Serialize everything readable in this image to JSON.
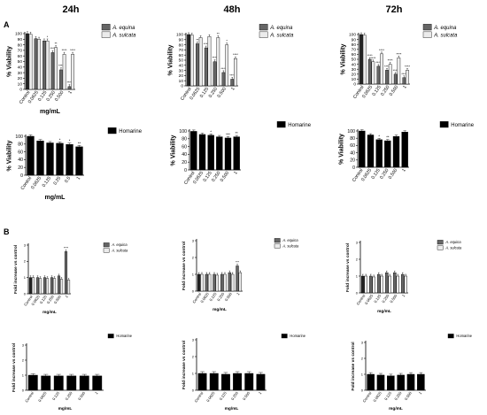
{
  "column_headers": [
    "24h",
    "48h",
    "72h"
  ],
  "section_labels": [
    "A",
    "B"
  ],
  "viability_ylabel": "% Viability",
  "fold_ylabel": "Fold increase vs control",
  "xlabel": "mg/mL",
  "series_names": {
    "equina": "A. equina",
    "sulcata": "A. sulcata",
    "homarine": "Homarine"
  },
  "colors": {
    "equina": "#666666",
    "sulcata": "#ebebeb",
    "homarine": "#000000",
    "control": "#222222"
  },
  "chart_data": [
    {
      "id": "A-extract-24h",
      "type": "bar",
      "ylabel": "% Viability",
      "xlabel": "mg/mL",
      "ylim": [
        0,
        100
      ],
      "yticks": [
        0,
        10,
        20,
        30,
        40,
        50,
        60,
        70,
        80,
        90,
        100
      ],
      "categories": [
        "Control",
        "0.0625",
        "0.125",
        "0.250",
        "0.500",
        "1"
      ],
      "series": [
        {
          "name": "A. equina",
          "values": [
            100,
            91,
            87,
            66,
            35,
            5
          ]
        },
        {
          "name": "A. sulcata",
          "values": [
            99,
            90,
            87,
            75,
            63,
            63
          ]
        }
      ],
      "annotations": [
        [
          "",
          ""
        ],
        [
          "",
          ""
        ],
        [
          "",
          "*"
        ],
        [
          "****",
          "**"
        ],
        [
          "****",
          "****"
        ],
        [
          "****",
          "****"
        ]
      ],
      "legend": "top-right",
      "grid": false
    },
    {
      "id": "A-extract-48h",
      "type": "bar",
      "ylabel": "% Viability",
      "xlabel": "mg/mL",
      "ylim": [
        0,
        100
      ],
      "yticks": [
        0,
        10,
        20,
        30,
        40,
        50,
        60,
        70,
        80,
        90,
        100
      ],
      "categories": [
        "Control",
        "0.0625",
        "0.125",
        "0.250",
        "0.500",
        "1"
      ],
      "series": [
        {
          "name": "A. equina",
          "values": [
            100,
            82,
            74,
            47,
            26,
            13
          ]
        },
        {
          "name": "A. sulcata",
          "values": [
            99,
            94,
            96,
            94,
            80,
            53
          ]
        }
      ],
      "annotations": [
        [
          "",
          ""
        ],
        [
          "**",
          ""
        ],
        [
          "****",
          ""
        ],
        [
          "****",
          "**"
        ],
        [
          "****",
          "*"
        ],
        [
          "****",
          "****"
        ]
      ],
      "legend": "top-right",
      "grid": false
    },
    {
      "id": "A-extract-72h",
      "type": "bar",
      "ylabel": "% Viability",
      "xlabel": "mg/mL",
      "ylim": [
        0,
        100
      ],
      "yticks": [
        0,
        10,
        20,
        30,
        40,
        50,
        60,
        70,
        80,
        90,
        100
      ],
      "categories": [
        "Control",
        "0.0625",
        "0.125",
        "0.250",
        "0.500",
        "1"
      ],
      "series": [
        {
          "name": "A. equina",
          "values": [
            100,
            50,
            36,
            28,
            20,
            13
          ]
        },
        {
          "name": "A. sulcata",
          "values": [
            99,
            45,
            61,
            40,
            53,
            28
          ]
        }
      ],
      "annotations": [
        [
          "",
          ""
        ],
        [
          "****",
          "****"
        ],
        [
          "****",
          "****"
        ],
        [
          "****",
          "****"
        ],
        [
          "****",
          "****"
        ],
        [
          "****",
          "****"
        ]
      ],
      "legend": "top-right",
      "grid": false
    },
    {
      "id": "A-homarine-24h",
      "type": "bar",
      "ylabel": "% Viability",
      "xlabel": "mg/mL",
      "ylim": [
        0,
        100
      ],
      "yticks": [
        0,
        20,
        40,
        60,
        80,
        100
      ],
      "categories": [
        "Control",
        "0.0625",
        "0.125",
        "0.25",
        "0.5",
        "1"
      ],
      "series": [
        {
          "name": "Homarine",
          "values": [
            100,
            88,
            83,
            82,
            79,
            73
          ]
        }
      ],
      "annotations": [
        [
          ""
        ],
        [
          ""
        ],
        [
          ""
        ],
        [
          "*"
        ],
        [
          "*"
        ],
        [
          "**"
        ]
      ],
      "legend": "top-right",
      "grid": false
    },
    {
      "id": "A-homarine-48h",
      "type": "bar",
      "ylabel": "% Viability",
      "xlabel": "mg/mL",
      "ylim": [
        0,
        100
      ],
      "yticks": [
        0,
        20,
        40,
        60,
        80,
        100
      ],
      "categories": [
        "Control",
        "0.0625",
        "0.125",
        "0.250",
        "0.500",
        "1"
      ],
      "series": [
        {
          "name": "Homarine",
          "values": [
            99,
            91,
            89,
            85,
            82,
            85
          ]
        }
      ],
      "annotations": [
        [
          ""
        ],
        [
          ""
        ],
        [
          "*"
        ],
        [
          ""
        ],
        [
          "***"
        ],
        [
          "**"
        ]
      ],
      "legend": "top-right",
      "grid": false
    },
    {
      "id": "A-homarine-72h",
      "type": "bar",
      "ylabel": "% Viability",
      "xlabel": "mg/mL",
      "ylim": [
        0,
        100
      ],
      "yticks": [
        0,
        20,
        40,
        60,
        80,
        100
      ],
      "categories": [
        "Control",
        "0.0625",
        "0.125",
        "0.250",
        "0.500",
        "1"
      ],
      "series": [
        {
          "name": "Homarine",
          "values": [
            100,
            89,
            76,
            73,
            85,
            97
          ]
        }
      ],
      "annotations": [
        [
          ""
        ],
        [
          ""
        ],
        [
          "*"
        ],
        [
          "**"
        ],
        [
          ""
        ],
        [
          ""
        ]
      ],
      "legend": "top-right",
      "grid": false
    },
    {
      "id": "B-extract-24h",
      "type": "bar",
      "ylabel": "Fold increase vs control",
      "xlabel": "mg/mL",
      "ylim": [
        0,
        3
      ],
      "yticks": [
        0,
        1,
        2,
        3
      ],
      "categories": [
        "Control",
        "0.0625",
        "0.125",
        "0.250",
        "0.500",
        "1"
      ],
      "series": [
        {
          "name": "A. equina",
          "values": [
            1.0,
            1.0,
            1.0,
            1.0,
            1.1,
            2.6
          ]
        },
        {
          "name": "A. sulcata",
          "values": [
            1.0,
            0.95,
            0.95,
            0.95,
            0.9,
            0.85
          ]
        }
      ],
      "annotations": [
        [
          "",
          ""
        ],
        [
          "",
          ""
        ],
        [
          "",
          ""
        ],
        [
          "",
          ""
        ],
        [
          "",
          ""
        ],
        [
          "****",
          ""
        ]
      ],
      "legend": "top-right",
      "grid": false
    },
    {
      "id": "B-extract-48h",
      "type": "bar",
      "ylabel": "Fold increase vs control",
      "xlabel": "mg/mL",
      "ylim": [
        0,
        3
      ],
      "yticks": [
        0,
        1,
        2,
        3
      ],
      "categories": [
        "Control",
        "0.0625",
        "0.125",
        "0.250",
        "0.500",
        "1"
      ],
      "series": [
        {
          "name": "A. equina",
          "values": [
            1.0,
            1.0,
            1.0,
            1.0,
            1.1,
            1.5
          ]
        },
        {
          "name": "A. sulcata",
          "values": [
            1.0,
            1.0,
            0.95,
            1.0,
            1.0,
            1.1
          ]
        }
      ],
      "annotations": [
        [
          "",
          ""
        ],
        [
          "",
          ""
        ],
        [
          "",
          ""
        ],
        [
          "",
          ""
        ],
        [
          "",
          ""
        ],
        [
          "***",
          ""
        ]
      ],
      "legend": "top-right",
      "grid": false
    },
    {
      "id": "B-extract-72h",
      "type": "bar",
      "ylabel": "Fold increase vs control",
      "xlabel": "mg/mL",
      "ylim": [
        0,
        3
      ],
      "yticks": [
        0,
        1,
        2,
        3
      ],
      "categories": [
        "Control",
        "0.0625",
        "0.125",
        "0.250",
        "0.500",
        "1"
      ],
      "series": [
        {
          "name": "A. equina",
          "values": [
            1.0,
            1.0,
            1.1,
            1.2,
            1.2,
            1.1
          ]
        },
        {
          "name": "A. sulcata",
          "values": [
            1.0,
            0.95,
            1.0,
            1.0,
            1.0,
            1.0
          ]
        }
      ],
      "annotations": [
        [
          "",
          ""
        ],
        [
          "",
          ""
        ],
        [
          "",
          ""
        ],
        [
          "",
          ""
        ],
        [
          "",
          ""
        ],
        [
          "",
          ""
        ]
      ],
      "legend": "top-right",
      "grid": false
    },
    {
      "id": "B-homarine-24h",
      "type": "bar",
      "ylabel": "Fold increase vs control",
      "xlabel": "mg/mL",
      "ylim": [
        0,
        3
      ],
      "yticks": [
        0,
        1,
        2,
        3
      ],
      "categories": [
        "Control",
        "0.0625",
        "0.125",
        "0.250",
        "0.500",
        "1"
      ],
      "series": [
        {
          "name": "Homarine",
          "values": [
            1.0,
            0.95,
            0.95,
            0.95,
            0.95,
            0.95
          ]
        }
      ],
      "annotations": [
        [
          ""
        ],
        [
          ""
        ],
        [
          ""
        ],
        [
          ""
        ],
        [
          ""
        ],
        [
          ""
        ]
      ],
      "legend": "top-right",
      "grid": false
    },
    {
      "id": "B-homarine-48h",
      "type": "bar",
      "ylabel": "Fold increase vs control",
      "xlabel": "mg/mL",
      "ylim": [
        0,
        3
      ],
      "yticks": [
        0,
        1,
        2,
        3
      ],
      "categories": [
        "Control",
        "0.0625",
        "0.125",
        "0.250",
        "0.500",
        "1"
      ],
      "series": [
        {
          "name": "Homarine",
          "values": [
            1.0,
            1.0,
            0.95,
            1.0,
            1.0,
            0.95
          ]
        }
      ],
      "annotations": [
        [
          ""
        ],
        [
          ""
        ],
        [
          ""
        ],
        [
          ""
        ],
        [
          ""
        ],
        [
          ""
        ]
      ],
      "legend": "top-right",
      "grid": false
    },
    {
      "id": "B-homarine-72h",
      "type": "bar",
      "ylabel": "Fold increase vs control",
      "xlabel": "mg/mL",
      "ylim": [
        0,
        3
      ],
      "yticks": [
        0,
        1,
        2,
        3
      ],
      "categories": [
        "Control",
        "0.0625",
        "0.125",
        "0.250",
        "0.500",
        "1"
      ],
      "series": [
        {
          "name": "Homarine",
          "values": [
            1.0,
            0.95,
            0.9,
            0.95,
            1.0,
            1.0
          ]
        }
      ],
      "annotations": [
        [
          ""
        ],
        [
          ""
        ],
        [
          ""
        ],
        [
          ""
        ],
        [
          ""
        ],
        [
          ""
        ]
      ],
      "legend": "top-right",
      "grid": false
    }
  ]
}
